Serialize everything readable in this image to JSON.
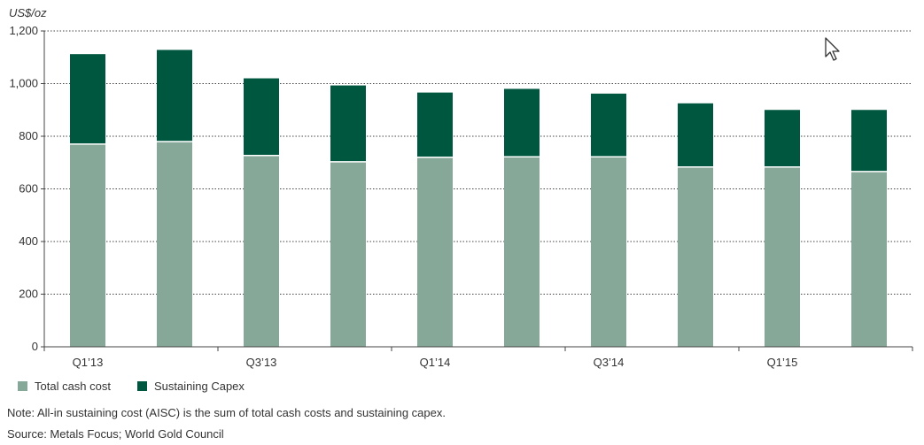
{
  "chart_data": {
    "type": "bar",
    "stacked": true,
    "title": "",
    "ylabel": "US$/oz",
    "xlabel": "",
    "ylim": [
      0,
      1200
    ],
    "yticks": [
      0,
      200,
      400,
      600,
      800,
      1000,
      1200
    ],
    "ytick_labels": [
      "0",
      "200",
      "400",
      "600",
      "800",
      "1,000",
      "1,200"
    ],
    "grid": "horizontal dotted",
    "categories": [
      "Q1’13",
      "",
      "Q3’13",
      "",
      "Q1’14",
      "",
      "Q3’14",
      "",
      "Q1’15",
      ""
    ],
    "series": [
      {
        "name": "Total cash cost",
        "color": "#86a898",
        "values": [
          770,
          780,
          727,
          703,
          720,
          722,
          722,
          683,
          683,
          666
        ]
      },
      {
        "name": "Sustaining Capex",
        "color": "#00573f",
        "values": [
          342,
          348,
          293,
          290,
          246,
          258,
          240,
          242,
          217,
          234
        ]
      }
    ],
    "legend_position": "bottom-left"
  },
  "note": "Note: All-in sustaining cost (AISC) is the sum of total cash costs and sustaining capex.",
  "source": "Source: Metals Focus; World Gold Council",
  "cursor_icon": "mouse-pointer-icon"
}
